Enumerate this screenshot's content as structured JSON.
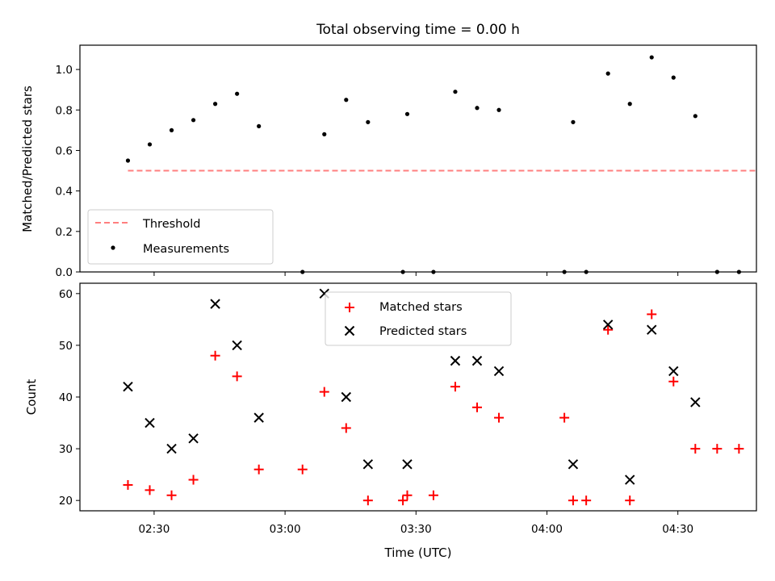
{
  "title": "Total observing time = 0.00 h",
  "colors": {
    "threshold": "#ff7f7f",
    "measurements": "#000000",
    "matched": "#ff0000",
    "predicted": "#000000"
  },
  "chart_data": [
    {
      "type": "scatter",
      "panel": "top",
      "ylabel": "Matched/Predicted stars",
      "ylim": [
        0,
        1.12
      ],
      "yticks": [
        "0.0",
        "0.2",
        "0.4",
        "0.6",
        "0.8",
        "1.0"
      ],
      "legend": {
        "placement": "lower-left",
        "entries": [
          "Threshold",
          "Measurements"
        ]
      },
      "threshold": {
        "name": "Threshold",
        "x": [
          "02:24",
          "04:48"
        ],
        "y": 0.5,
        "style": "dashed"
      },
      "series": [
        {
          "name": "Measurements",
          "x": [
            "02:24",
            "02:29",
            "02:34",
            "02:39",
            "02:44",
            "02:49",
            "02:54",
            "03:04",
            "03:09",
            "03:14",
            "03:19",
            "03:27",
            "03:28",
            "03:34",
            "03:39",
            "03:44",
            "03:49",
            "04:04",
            "04:06",
            "04:09",
            "04:14",
            "04:19",
            "04:24",
            "04:29",
            "04:34",
            "04:39",
            "04:44"
          ],
          "y": [
            0.55,
            0.63,
            0.7,
            0.75,
            0.83,
            0.88,
            0.72,
            0.0,
            0.68,
            0.85,
            0.74,
            0.0,
            0.78,
            0.0,
            0.89,
            0.81,
            0.8,
            0.0,
            0.74,
            0.0,
            0.98,
            0.83,
            1.06,
            0.96,
            0.77,
            0.0,
            0.0
          ]
        }
      ]
    },
    {
      "type": "scatter",
      "panel": "bottom",
      "xlabel": "Time (UTC)",
      "ylabel": "Count",
      "xlim": [
        "02:13",
        "04:48"
      ],
      "ylim": [
        18,
        62
      ],
      "xticks": [
        "02:30",
        "03:00",
        "03:30",
        "04:00",
        "04:30"
      ],
      "yticks": [
        "20",
        "30",
        "40",
        "50",
        "60"
      ],
      "legend": {
        "placement": "upper-center",
        "entries": [
          "Matched stars",
          "Predicted stars"
        ]
      },
      "series": [
        {
          "name": "Matched stars",
          "marker": "plus",
          "x": [
            "02:24",
            "02:29",
            "02:34",
            "02:39",
            "02:44",
            "02:49",
            "02:54",
            "03:04",
            "03:09",
            "03:14",
            "03:19",
            "03:27",
            "03:28",
            "03:34",
            "03:39",
            "03:44",
            "03:49",
            "04:04",
            "04:06",
            "04:09",
            "04:14",
            "04:19",
            "04:24",
            "04:29",
            "04:34",
            "04:39",
            "04:44"
          ],
          "y": [
            23,
            22,
            21,
            24,
            48,
            44,
            26,
            26,
            41,
            34,
            20,
            20,
            21,
            21,
            42,
            38,
            36,
            36,
            20,
            20,
            53,
            20,
            56,
            43,
            30,
            30,
            30
          ]
        },
        {
          "name": "Predicted stars",
          "marker": "x",
          "x": [
            "02:24",
            "02:29",
            "02:34",
            "02:39",
            "02:44",
            "02:49",
            "02:54",
            "03:09",
            "03:14",
            "03:19",
            "03:28",
            "03:39",
            "03:44",
            "03:49",
            "04:06",
            "04:14",
            "04:19",
            "04:24",
            "04:29",
            "04:34"
          ],
          "y": [
            42,
            35,
            30,
            32,
            58,
            50,
            36,
            60,
            40,
            27,
            27,
            47,
            47,
            45,
            27,
            54,
            24,
            53,
            45,
            39
          ]
        }
      ]
    }
  ]
}
